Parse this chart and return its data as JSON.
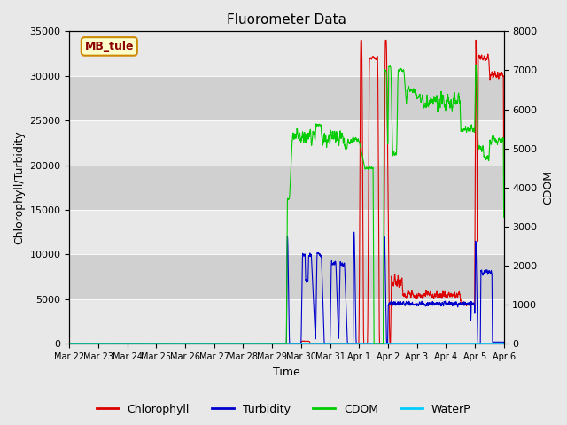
{
  "title": "Fluorometer Data",
  "xlabel": "Time",
  "ylabel_left": "Chlorophyll/Turbidity",
  "ylabel_right": "CDOM",
  "ylim_left": [
    0,
    35000
  ],
  "ylim_right": [
    0,
    8000
  ],
  "yticks_left": [
    0,
    5000,
    10000,
    15000,
    20000,
    25000,
    30000,
    35000
  ],
  "yticks_right": [
    0,
    1000,
    2000,
    3000,
    4000,
    5000,
    6000,
    7000,
    8000
  ],
  "x_tick_labels": [
    "Mar 22",
    "Mar 23",
    "Mar 24",
    "Mar 25",
    "Mar 26",
    "Mar 27",
    "Mar 28",
    "Mar 29",
    "Mar 30",
    "Mar 31",
    "Apr 1",
    "Apr 2",
    "Apr 3",
    "Apr 4",
    "Apr 5",
    "Apr 6"
  ],
  "station_label": "MB_tule",
  "station_label_color": "#8b0000",
  "station_box_facecolor": "#ffffcc",
  "station_box_edgecolor": "#cc8800",
  "colors": {
    "Chlorophyll": "#dd0000",
    "Turbidity": "#0000cc",
    "CDOM": "#00cc00",
    "WaterP": "#00ccff"
  },
  "legend_entries": [
    "Chlorophyll",
    "Turbidity",
    "CDOM",
    "WaterP"
  ],
  "fig_facecolor": "#e8e8e8",
  "plot_bg_color": "#d8d8d8",
  "band_light": "#e8e8e8",
  "band_dark": "#d0d0d0",
  "title_fontsize": 11
}
